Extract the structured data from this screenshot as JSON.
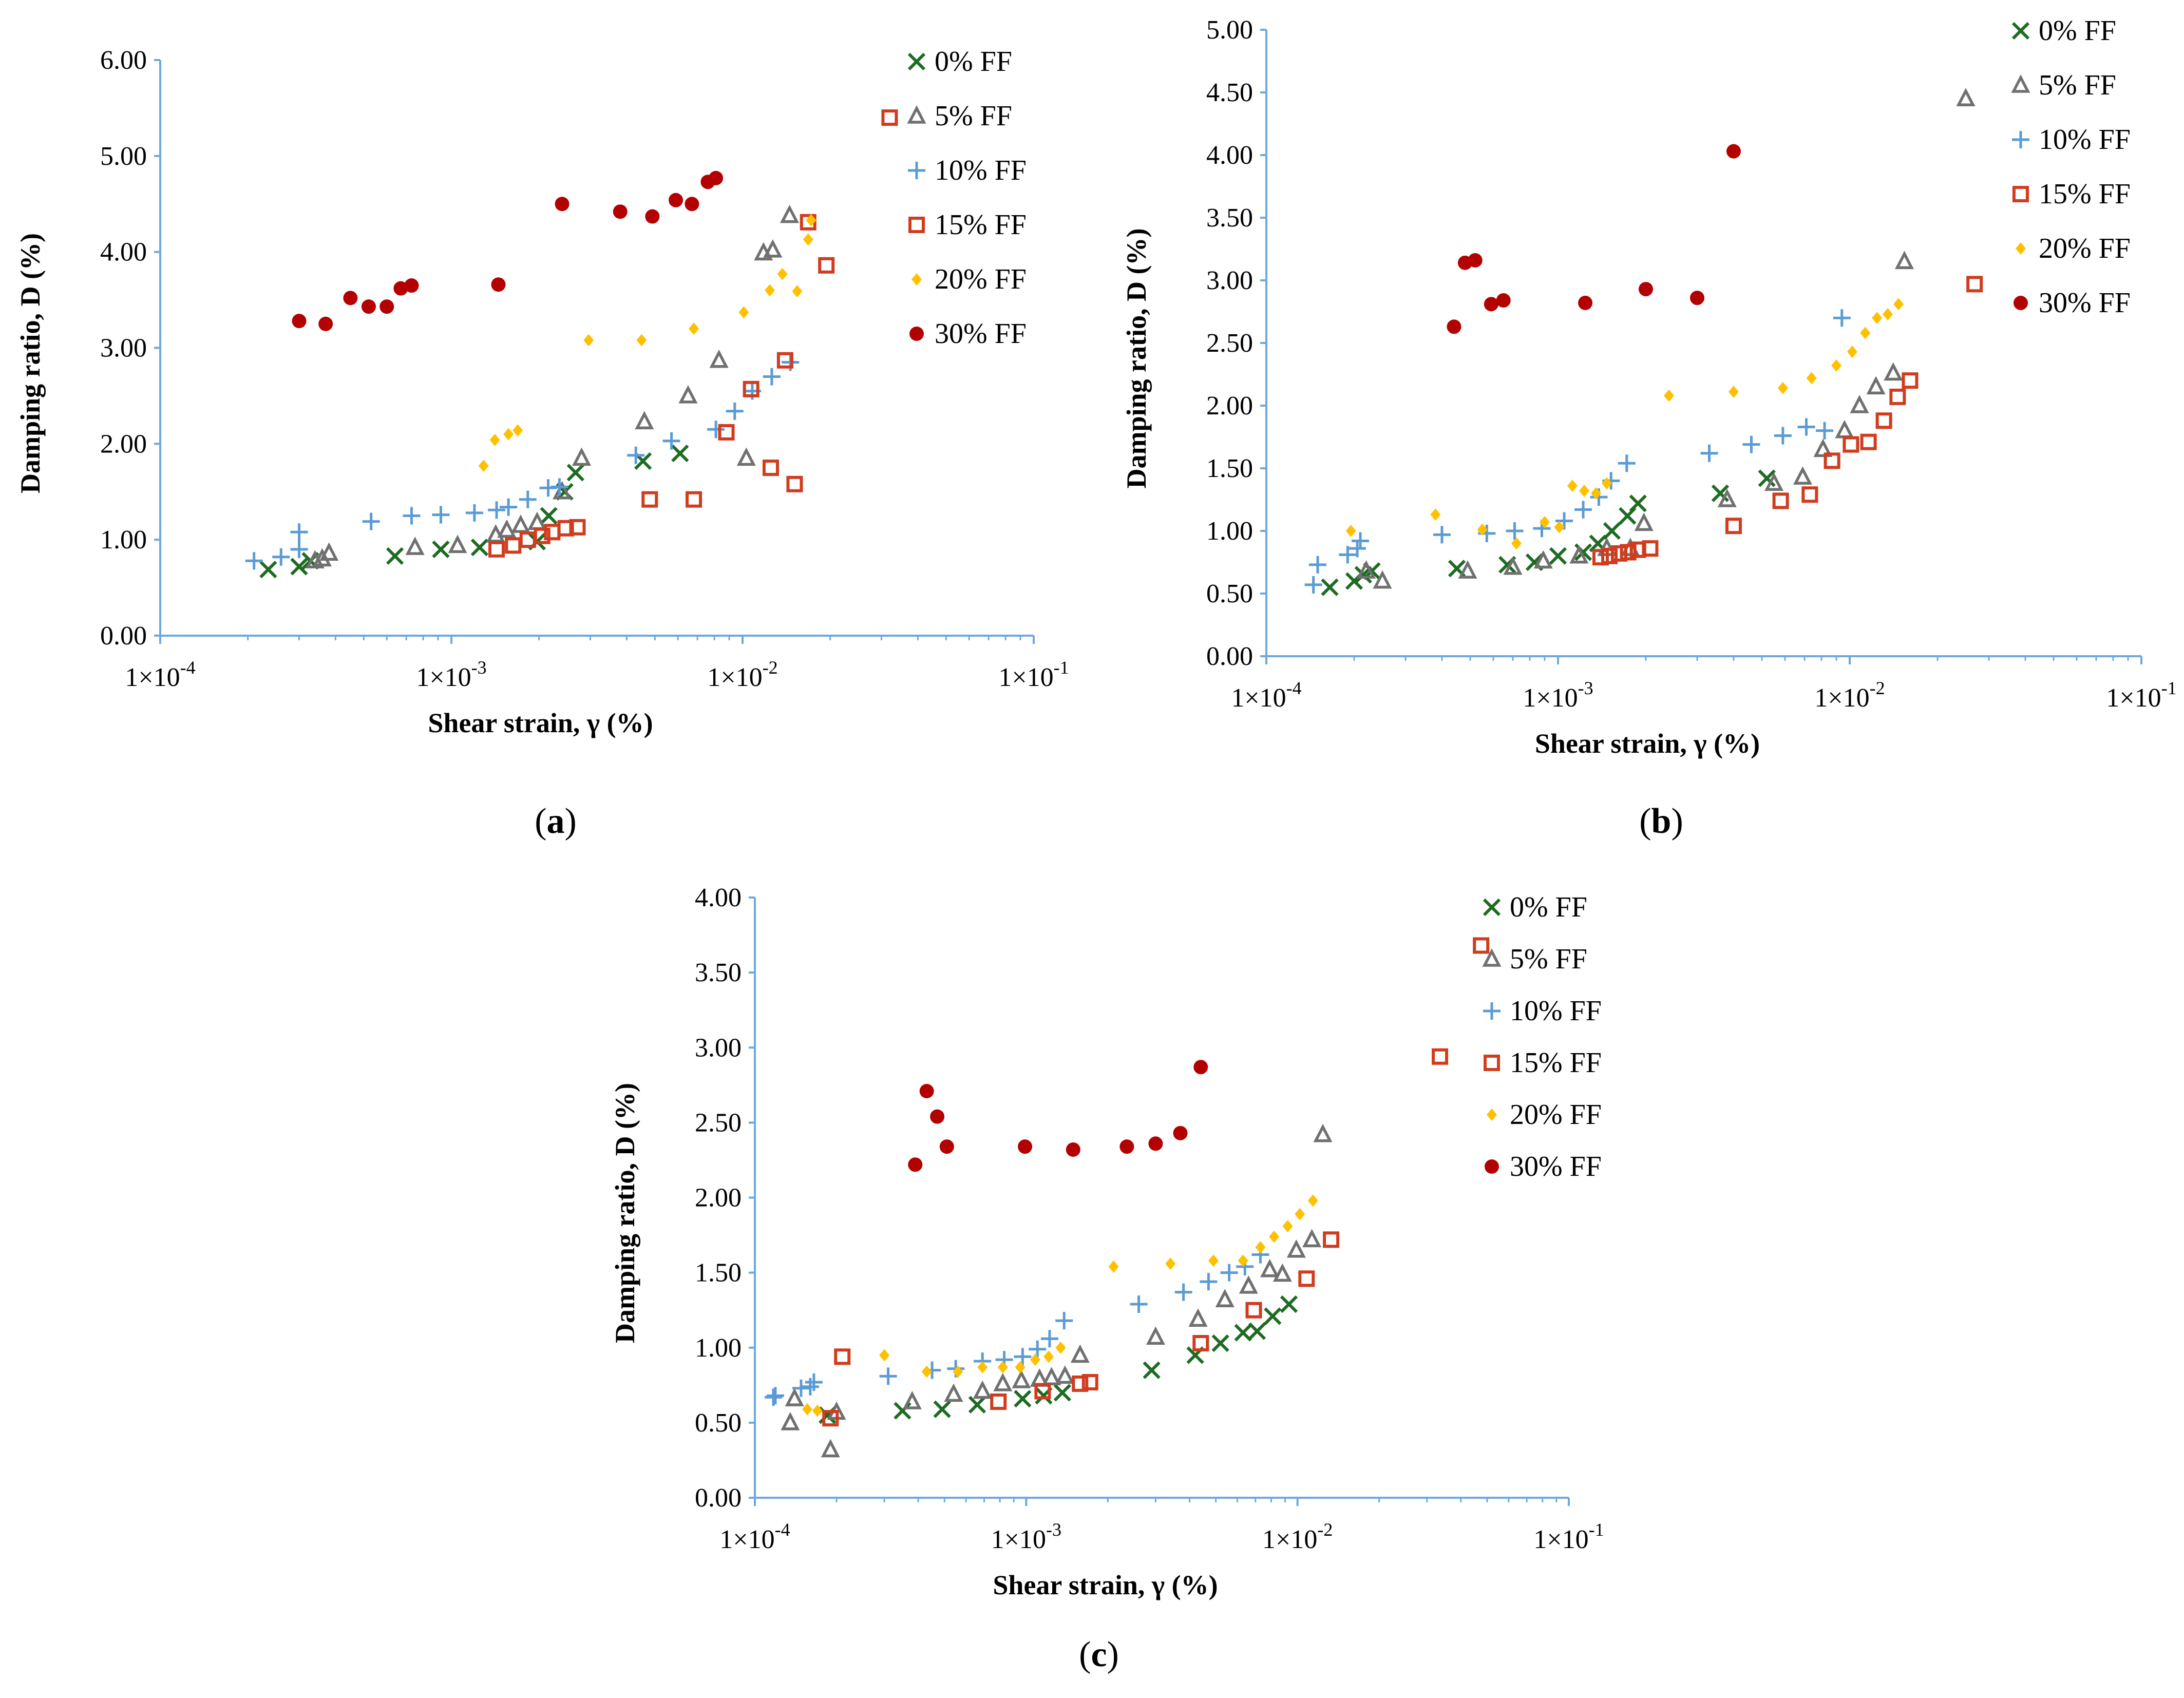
{
  "chart_data": [
    {
      "id": "a",
      "panel_label": "a",
      "type": "scatter",
      "xscale": "log",
      "xlim": [
        0.0001,
        0.1
      ],
      "ylim": [
        0,
        6
      ],
      "xlabel": "Shear strain, γ (%)",
      "ylabel": "Damping ratio, D (%)",
      "xtick_base": [
        "1×10",
        "1×10",
        "1×10",
        "1×10"
      ],
      "xtick_exp": [
        "-4",
        "-3",
        "-2",
        "-1"
      ],
      "yticks": [
        "0.00",
        "1.00",
        "2.00",
        "3.00",
        "4.00",
        "5.00",
        "6.00"
      ],
      "grid": false,
      "legend_position": "top-right",
      "series": [
        {
          "name": "0% FF",
          "marker": "x",
          "color": "#1e6b22",
          "x": [
            0.000235,
            0.0003,
            0.000328,
            0.00064,
            0.00092,
            0.00125,
            0.00197,
            0.00216,
            0.00245,
            0.00267,
            0.00455,
            0.0061
          ],
          "y": [
            0.69,
            0.72,
            0.78,
            0.83,
            0.9,
            0.92,
            0.98,
            1.25,
            1.5,
            1.7,
            1.82,
            1.9
          ]
        },
        {
          "name": "5% FF",
          "marker": "triangle",
          "color": "#707070",
          "x": [
            0.00034,
            0.00036,
            0.00038,
            0.00075,
            0.00105,
            0.00142,
            0.00155,
            0.00173,
            0.00197,
            0.0024,
            0.0028,
            0.0046,
            0.0065,
            0.0083,
            0.0103,
            0.0118,
            0.0127,
            0.0145
          ],
          "y": [
            0.78,
            0.8,
            0.86,
            0.92,
            0.94,
            1.05,
            1.1,
            1.15,
            1.18,
            1.5,
            1.85,
            2.23,
            2.5,
            2.87,
            1.85,
            3.99,
            4.02,
            4.38
          ]
        },
        {
          "name": "10% FF",
          "marker": "plus",
          "color": "#5b9bd5",
          "x": [
            0.00021,
            0.00026,
            0.0003,
            0.0003,
            0.00053,
            0.00073,
            0.00092,
            0.0012,
            0.00143,
            0.00157,
            0.00183,
            0.00215,
            0.00235,
            0.0043,
            0.0057,
            0.0081,
            0.0094,
            0.0108,
            0.0126,
            0.0146
          ],
          "y": [
            0.78,
            0.82,
            0.9,
            1.08,
            1.19,
            1.25,
            1.26,
            1.28,
            1.31,
            1.34,
            1.42,
            1.54,
            1.55,
            1.88,
            2.03,
            2.15,
            2.34,
            2.55,
            2.7,
            2.85
          ]
        },
        {
          "name": "15% FF",
          "marker": "square",
          "color": "#d03c1e",
          "x": [
            0.00143,
            0.00163,
            0.00183,
            0.00205,
            0.00222,
            0.00247,
            0.00271,
            0.0048,
            0.0068,
            0.0088,
            0.0107,
            0.0125,
            0.014,
            0.0151,
            0.0168,
            0.0194,
            0.032
          ],
          "y": [
            0.9,
            0.94,
            1.0,
            1.04,
            1.08,
            1.12,
            1.13,
            1.42,
            1.42,
            2.12,
            2.57,
            1.75,
            2.87,
            1.58,
            4.31,
            3.86,
            5.4
          ]
        },
        {
          "name": "20% FF",
          "marker": "diamond",
          "color": "#ffc000",
          "x": [
            0.00129,
            0.00141,
            0.00157,
            0.00169,
            0.00296,
            0.0045,
            0.0068,
            0.0101,
            0.0124,
            0.0137,
            0.0154,
            0.0168,
            0.0172
          ],
          "y": [
            1.77,
            2.04,
            2.1,
            2.14,
            3.08,
            3.08,
            3.2,
            3.37,
            3.6,
            3.77,
            3.59,
            4.13,
            4.33
          ]
        },
        {
          "name": "30% FF",
          "marker": "circle",
          "color": "#b30000",
          "x": [
            0.0003,
            0.00037,
            0.00045,
            0.00052,
            0.0006,
            0.00067,
            0.00073,
            0.00145,
            0.0024,
            0.0038,
            0.0049,
            0.0059,
            0.0067,
            0.0076,
            0.0081
          ],
          "y": [
            3.28,
            3.25,
            3.52,
            3.43,
            3.43,
            3.62,
            3.65,
            3.66,
            4.5,
            4.42,
            4.37,
            4.54,
            4.5,
            4.73,
            4.77
          ]
        }
      ]
    },
    {
      "id": "b",
      "panel_label": "b",
      "type": "scatter",
      "xscale": "log",
      "xlim": [
        0.0001,
        0.1
      ],
      "ylim": [
        0,
        5
      ],
      "xlabel": "Shear strain, γ (%)",
      "ylabel": "Damping ratio, D (%)",
      "xtick_base": [
        "1×10",
        "1×10",
        "1×10",
        "1×10"
      ],
      "xtick_exp": [
        "-4",
        "-3",
        "-2",
        "-1"
      ],
      "yticks": [
        "0.00",
        "0.50",
        "1.00",
        "1.50",
        "2.00",
        "2.50",
        "3.00",
        "3.50",
        "4.00",
        "4.50",
        "5.00"
      ],
      "grid": false,
      "legend_position": "top-right",
      "series": [
        {
          "name": "0% FF",
          "marker": "x",
          "color": "#1e6b22",
          "x": [
            0.000165,
            0.0002,
            0.000215,
            0.00023,
            0.00045,
            0.00067,
            0.00083,
            0.001,
            0.00122,
            0.00137,
            0.00153,
            0.00173,
            0.00188,
            0.0036,
            0.0052
          ],
          "y": [
            0.55,
            0.6,
            0.65,
            0.68,
            0.7,
            0.73,
            0.75,
            0.8,
            0.83,
            0.9,
            1.0,
            1.12,
            1.22,
            1.3,
            1.42
          ]
        },
        {
          "name": "5% FF",
          "marker": "triangle",
          "color": "#707070",
          "x": [
            0.00022,
            0.00025,
            0.00049,
            0.0007,
            0.00089,
            0.00118,
            0.00147,
            0.00177,
            0.00197,
            0.0038,
            0.0055,
            0.0069,
            0.0081,
            0.0096,
            0.0108,
            0.0123,
            0.0141,
            0.0154,
            0.025
          ],
          "y": [
            0.68,
            0.6,
            0.68,
            0.71,
            0.76,
            0.8,
            0.86,
            0.86,
            1.06,
            1.25,
            1.38,
            1.43,
            1.65,
            1.8,
            2.0,
            2.15,
            2.26,
            3.15,
            4.45
          ]
        },
        {
          "name": "10% FF",
          "marker": "plus",
          "color": "#5b9bd5",
          "x": [
            0.000145,
            0.00015,
            0.00019,
            0.000205,
            0.00021,
            0.0004,
            0.00057,
            0.00071,
            0.00088,
            0.00105,
            0.00122,
            0.00138,
            0.00152,
            0.00172,
            0.0033,
            0.0046,
            0.0059,
            0.0071,
            0.0082,
            0.0094
          ],
          "y": [
            0.57,
            0.73,
            0.81,
            0.86,
            0.92,
            0.97,
            0.98,
            1.0,
            1.02,
            1.08,
            1.17,
            1.27,
            1.4,
            1.54,
            1.62,
            1.69,
            1.76,
            1.83,
            1.8,
            2.7
          ]
        },
        {
          "name": "15% FF",
          "marker": "square",
          "color": "#d03c1e",
          "x": [
            0.0014,
            0.0015,
            0.00162,
            0.00174,
            0.00188,
            0.00207,
            0.004,
            0.0058,
            0.0073,
            0.0087,
            0.0101,
            0.0116,
            0.0131,
            0.0146,
            0.0161,
            0.0268
          ],
          "y": [
            0.79,
            0.8,
            0.82,
            0.83,
            0.85,
            0.86,
            1.04,
            1.24,
            1.29,
            1.56,
            1.69,
            1.71,
            1.88,
            2.07,
            2.2,
            2.97
          ]
        },
        {
          "name": "20% FF",
          "marker": "diamond",
          "color": "#ffc000",
          "x": [
            0.000195,
            0.00038,
            0.00055,
            0.00072,
            0.0009,
            0.00101,
            0.00112,
            0.00123,
            0.00135,
            0.00147,
            0.0024,
            0.004,
            0.0059,
            0.0074,
            0.009,
            0.0102,
            0.0113,
            0.0124,
            0.0135,
            0.0147
          ],
          "y": [
            1.0,
            1.13,
            1.01,
            0.9,
            1.07,
            1.03,
            1.36,
            1.32,
            1.3,
            1.38,
            2.08,
            2.11,
            2.14,
            2.22,
            2.32,
            2.43,
            2.58,
            2.7,
            2.73,
            2.81
          ]
        },
        {
          "name": "30% FF",
          "marker": "circle",
          "color": "#b30000",
          "x": [
            0.00044,
            0.00048,
            0.00052,
            0.00059,
            0.00065,
            0.00124,
            0.002,
            0.003,
            0.004
          ],
          "y": [
            2.63,
            3.14,
            3.16,
            2.81,
            2.84,
            2.82,
            2.93,
            2.86,
            4.03
          ]
        }
      ]
    },
    {
      "id": "c",
      "panel_label": "c",
      "type": "scatter",
      "xscale": "log",
      "xlim": [
        0.0001,
        0.1
      ],
      "ylim": [
        0,
        4
      ],
      "xlabel": "Shear strain, γ (%)",
      "ylabel": "Damping ratio, D (%)",
      "xtick_base": [
        "1×10",
        "1×10",
        "1×10",
        "1×10"
      ],
      "xtick_exp": [
        "-4",
        "-3",
        "-2",
        "-1"
      ],
      "yticks": [
        "0.00",
        "0.50",
        "1.00",
        "1.50",
        "2.00",
        "2.50",
        "3.00",
        "3.50",
        "4.00"
      ],
      "grid": false,
      "legend_position": "top-right",
      "series": [
        {
          "name": "0% FF",
          "marker": "x",
          "color": "#1e6b22",
          "x": [
            0.000185,
            0.00035,
            0.00049,
            0.00066,
            0.00097,
            0.00116,
            0.00136,
            0.0029,
            0.0042,
            0.0052,
            0.0063,
            0.0071,
            0.0081,
            0.0093
          ],
          "y": [
            0.55,
            0.58,
            0.59,
            0.62,
            0.66,
            0.68,
            0.7,
            0.85,
            0.95,
            1.03,
            1.1,
            1.11,
            1.21,
            1.29
          ]
        },
        {
          "name": "5% FF",
          "marker": "triangle",
          "color": "#707070",
          "x": [
            0.000135,
            0.00014,
            0.00019,
            0.0002,
            0.00038,
            0.00054,
            0.00069,
            0.00082,
            0.00096,
            0.00112,
            0.00124,
            0.00139,
            0.00158,
            0.003,
            0.0043,
            0.0054,
            0.0066,
            0.0079,
            0.0088,
            0.0099,
            0.0113,
            0.0124
          ],
          "y": [
            0.5,
            0.66,
            0.32,
            0.57,
            0.64,
            0.69,
            0.71,
            0.76,
            0.78,
            0.79,
            0.8,
            0.81,
            0.95,
            1.07,
            1.19,
            1.32,
            1.41,
            1.52,
            1.49,
            1.65,
            1.72,
            2.42
          ]
        },
        {
          "name": "10% FF",
          "marker": "plus",
          "color": "#5b9bd5",
          "x": [
            0.000117,
            0.000119,
            0.000148,
            0.00016,
            0.000165,
            0.00031,
            0.00045,
            0.00055,
            0.00069,
            0.00083,
            0.00097,
            0.0011,
            0.00122,
            0.00138,
            0.0026,
            0.0038,
            0.0047,
            0.0056,
            0.0064,
            0.0073
          ],
          "y": [
            0.67,
            0.68,
            0.73,
            0.74,
            0.77,
            0.81,
            0.85,
            0.86,
            0.91,
            0.92,
            0.94,
            0.99,
            1.06,
            1.18,
            1.29,
            1.37,
            1.44,
            1.5,
            1.54,
            1.62
          ]
        },
        {
          "name": "15% FF",
          "marker": "square",
          "color": "#d03c1e",
          "x": [
            0.00019,
            0.00021,
            0.00079,
            0.00115,
            0.00158,
            0.00172,
            0.0044,
            0.0069,
            0.0108,
            0.0133,
            0.0335,
            0.0475
          ],
          "y": [
            0.53,
            0.94,
            0.64,
            0.71,
            0.76,
            0.77,
            1.03,
            1.25,
            1.46,
            1.72,
            2.94,
            3.68
          ]
        },
        {
          "name": "20% FF",
          "marker": "diamond",
          "color": "#ffc000",
          "x": [
            0.000156,
            0.00017,
            0.0003,
            0.00043,
            0.00056,
            0.00069,
            0.00082,
            0.00095,
            0.00108,
            0.00121,
            0.00134,
            0.0021,
            0.0034,
            0.0049,
            0.0063,
            0.0073,
            0.0082,
            0.0092,
            0.0102,
            0.0114
          ],
          "y": [
            0.59,
            0.58,
            0.95,
            0.84,
            0.84,
            0.87,
            0.87,
            0.87,
            0.92,
            0.94,
            1.0,
            1.54,
            1.56,
            1.58,
            1.58,
            1.67,
            1.74,
            1.81,
            1.89,
            1.98
          ]
        },
        {
          "name": "30% FF",
          "marker": "circle",
          "color": "#b30000",
          "x": [
            0.00039,
            0.00043,
            0.00047,
            0.00051,
            0.00099,
            0.00149,
            0.00235,
            0.003,
            0.0037,
            0.0044
          ],
          "y": [
            2.22,
            2.71,
            2.54,
            2.34,
            2.34,
            2.32,
            2.34,
            2.36,
            2.43,
            2.87
          ]
        }
      ]
    }
  ]
}
